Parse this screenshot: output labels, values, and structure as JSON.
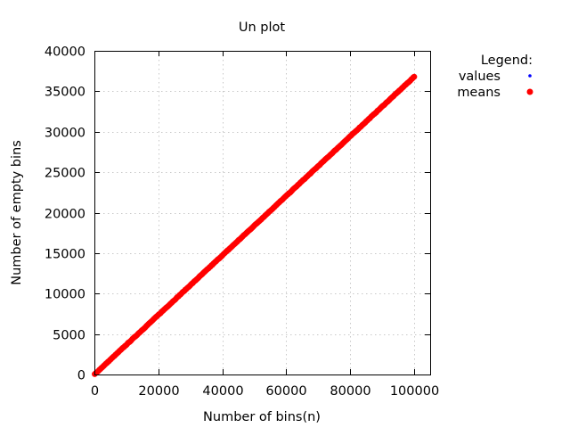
{
  "chart_data": {
    "type": "scatter",
    "title": "Un plot",
    "xlabel": "Number of bins(n)",
    "ylabel": "Number of empty bins",
    "xlim": [
      0,
      105000
    ],
    "ylim": [
      0,
      40000
    ],
    "x_ticks": [
      0,
      20000,
      40000,
      60000,
      80000,
      100000
    ],
    "y_ticks": [
      0,
      5000,
      10000,
      15000,
      20000,
      25000,
      30000,
      35000,
      40000
    ],
    "grid": true,
    "legend": {
      "title": "Legend:",
      "placement": "outside-top-right"
    },
    "series": [
      {
        "name": "values",
        "color": "#0000ff",
        "marker": "small-dot",
        "x_range": [
          100,
          100000
        ],
        "slope": 0.3679,
        "approx_points": [
          [
            100,
            37
          ],
          [
            20000,
            7358
          ],
          [
            40000,
            14716
          ],
          [
            60000,
            22074
          ],
          [
            80000,
            29432
          ],
          [
            100000,
            36790
          ]
        ]
      },
      {
        "name": "means",
        "color": "#ff0000",
        "marker": "filled-circle",
        "x_range": [
          100,
          100000
        ],
        "slope": 0.3679,
        "approx_points": [
          [
            100,
            37
          ],
          [
            20000,
            7358
          ],
          [
            40000,
            14716
          ],
          [
            60000,
            22074
          ],
          [
            80000,
            29432
          ],
          [
            100000,
            36790
          ]
        ]
      }
    ]
  }
}
